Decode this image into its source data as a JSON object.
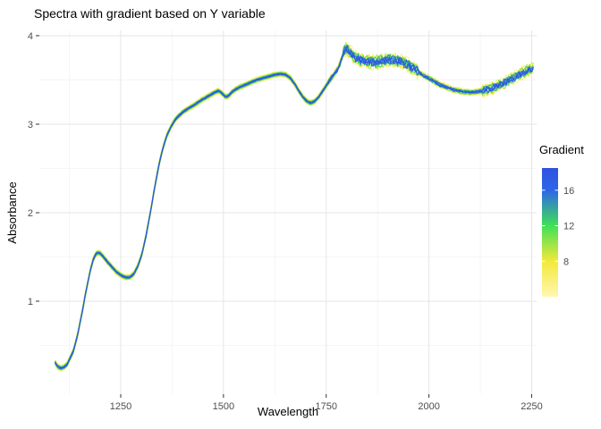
{
  "chart_data": {
    "type": "line",
    "title": "Spectra with gradient based on Y variable",
    "xlabel": "Wavelength",
    "ylabel": "Absorbance",
    "x_ticks": [
      1250,
      1500,
      1750,
      2000,
      2250
    ],
    "y_ticks": [
      1,
      2,
      3,
      4
    ],
    "x_minor": [
      1125,
      1375,
      1625,
      1875,
      2125
    ],
    "y_minor": [
      0.5,
      1.5,
      2.5,
      3.5
    ],
    "xlim": [
      1052,
      2262
    ],
    "ylim": [
      -0.05,
      4.06
    ],
    "grid": true,
    "legend": {
      "title": "Gradient",
      "ticks": [
        16,
        12,
        8
      ],
      "range": [
        4,
        18.5
      ],
      "position": "right"
    },
    "color_scale": {
      "stops": [
        {
          "value": 4,
          "color": "#FFF7B0"
        },
        {
          "value": 8,
          "color": "#F2E93B"
        },
        {
          "value": 12,
          "color": "#3FE056"
        },
        {
          "value": 16,
          "color": "#2E66E8"
        },
        {
          "value": 18.5,
          "color": "#2F52E0"
        }
      ]
    },
    "base_spectrum": [
      [
        1090,
        0.31
      ],
      [
        1097,
        0.26
      ],
      [
        1104,
        0.245
      ],
      [
        1112,
        0.255
      ],
      [
        1120,
        0.29
      ],
      [
        1135,
        0.44
      ],
      [
        1145,
        0.62
      ],
      [
        1155,
        0.85
      ],
      [
        1165,
        1.1
      ],
      [
        1175,
        1.33
      ],
      [
        1183,
        1.47
      ],
      [
        1190,
        1.54
      ],
      [
        1197,
        1.55
      ],
      [
        1205,
        1.52
      ],
      [
        1215,
        1.46
      ],
      [
        1228,
        1.39
      ],
      [
        1240,
        1.33
      ],
      [
        1252,
        1.29
      ],
      [
        1262,
        1.27
      ],
      [
        1272,
        1.27
      ],
      [
        1282,
        1.31
      ],
      [
        1292,
        1.4
      ],
      [
        1302,
        1.54
      ],
      [
        1312,
        1.75
      ],
      [
        1322,
        2.0
      ],
      [
        1332,
        2.27
      ],
      [
        1342,
        2.52
      ],
      [
        1352,
        2.72
      ],
      [
        1362,
        2.87
      ],
      [
        1372,
        2.97
      ],
      [
        1382,
        3.05
      ],
      [
        1392,
        3.1
      ],
      [
        1402,
        3.14
      ],
      [
        1415,
        3.18
      ],
      [
        1430,
        3.22
      ],
      [
        1445,
        3.27
      ],
      [
        1460,
        3.31
      ],
      [
        1475,
        3.35
      ],
      [
        1488,
        3.38
      ],
      [
        1497,
        3.35
      ],
      [
        1505,
        3.31
      ],
      [
        1512,
        3.32
      ],
      [
        1522,
        3.37
      ],
      [
        1535,
        3.41
      ],
      [
        1550,
        3.44
      ],
      [
        1565,
        3.47
      ],
      [
        1580,
        3.5
      ],
      [
        1595,
        3.52
      ],
      [
        1610,
        3.54
      ],
      [
        1625,
        3.56
      ],
      [
        1640,
        3.57
      ],
      [
        1652,
        3.56
      ],
      [
        1663,
        3.52
      ],
      [
        1673,
        3.46
      ],
      [
        1683,
        3.38
      ],
      [
        1693,
        3.31
      ],
      [
        1703,
        3.26
      ],
      [
        1712,
        3.24
      ],
      [
        1722,
        3.26
      ],
      [
        1732,
        3.31
      ],
      [
        1742,
        3.38
      ],
      [
        1752,
        3.45
      ],
      [
        1762,
        3.52
      ],
      [
        1772,
        3.58
      ],
      [
        1780,
        3.64
      ],
      [
        1788,
        3.74
      ],
      [
        1794,
        3.83
      ],
      [
        1800,
        3.86
      ],
      [
        1808,
        3.81
      ],
      [
        1818,
        3.76
      ],
      [
        1830,
        3.73
      ],
      [
        1845,
        3.71
      ],
      [
        1860,
        3.7
      ],
      [
        1875,
        3.71
      ],
      [
        1890,
        3.72
      ],
      [
        1905,
        3.73
      ],
      [
        1920,
        3.72
      ],
      [
        1935,
        3.7
      ],
      [
        1950,
        3.67
      ],
      [
        1965,
        3.62
      ],
      [
        1980,
        3.57
      ],
      [
        1995,
        3.53
      ],
      [
        2010,
        3.49
      ],
      [
        2025,
        3.45
      ],
      [
        2040,
        3.42
      ],
      [
        2060,
        3.39
      ],
      [
        2080,
        3.37
      ],
      [
        2100,
        3.36
      ],
      [
        2120,
        3.37
      ],
      [
        2140,
        3.39
      ],
      [
        2160,
        3.42
      ],
      [
        2180,
        3.46
      ],
      [
        2200,
        3.51
      ],
      [
        2220,
        3.56
      ],
      [
        2240,
        3.61
      ],
      [
        2256,
        3.64
      ]
    ],
    "series": [
      {
        "gradient": 5,
        "offset": 0.03
      },
      {
        "gradient": 6,
        "offset": -0.03
      },
      {
        "gradient": 7,
        "offset": 0.025
      },
      {
        "gradient": 8,
        "offset": -0.025
      },
      {
        "gradient": 9,
        "offset": 0.02
      },
      {
        "gradient": 10,
        "offset": -0.02
      },
      {
        "gradient": 11,
        "offset": 0.015
      },
      {
        "gradient": 12,
        "offset": -0.015
      },
      {
        "gradient": 13,
        "offset": 0.01
      },
      {
        "gradient": 14,
        "offset": -0.01
      },
      {
        "gradient": 15,
        "offset": 0.006
      },
      {
        "gradient": 16,
        "offset": -0.006
      },
      {
        "gradient": 17,
        "offset": 0.002
      },
      {
        "gradient": 18,
        "offset": -0.002
      }
    ]
  }
}
